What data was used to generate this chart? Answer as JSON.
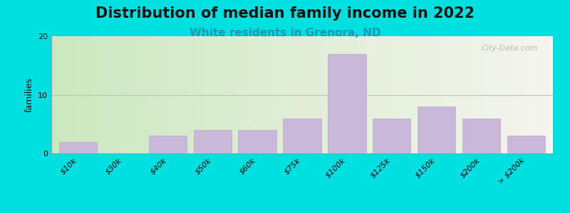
{
  "title": "Distribution of median family income in 2022",
  "subtitle": "White residents in Grenora, ND",
  "ylabel": "families",
  "categories": [
    "$10k",
    "$30k",
    "$40k",
    "$50k",
    "$60k",
    "$75k",
    "$100k",
    "$125k",
    "$150k",
    "$200k",
    "> $200k"
  ],
  "values": [
    2,
    0,
    3,
    4,
    4,
    6,
    17,
    6,
    8,
    6,
    3
  ],
  "bar_color": "#c9b8d8",
  "bar_edge_color": "#b8a8cc",
  "background_outer": "#00e0e0",
  "grid_color": "#e8b0b0",
  "title_fontsize": 15,
  "subtitle_fontsize": 11,
  "ylabel_fontsize": 9,
  "tick_fontsize": 8,
  "ylim": [
    0,
    20
  ],
  "yticks": [
    0,
    10,
    20
  ],
  "watermark": "City-Data.com"
}
